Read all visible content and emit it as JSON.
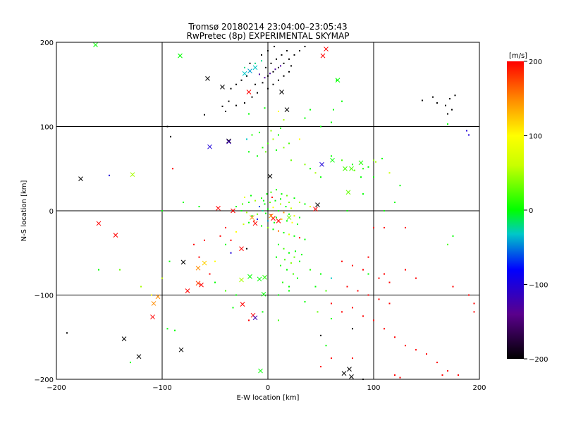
{
  "chart_data": {
    "type": "scatter",
    "title": "Tromsø 20180214 23:04:00–23:05:43",
    "subtitle": "RwPretec (8p) EXPERIMENTAL SKYMAP",
    "xlabel": "E-W location [km]",
    "ylabel": "N-S location [km]",
    "xlim": [
      -200,
      200
    ],
    "ylim": [
      -200,
      200
    ],
    "x_ticks": [
      -200,
      -100,
      0,
      100,
      200
    ],
    "y_ticks": [
      -200,
      -100,
      0,
      100,
      200
    ],
    "grid": true,
    "colorbar": {
      "label": "[m/s]",
      "min": -200,
      "max": 200,
      "ticks": [
        200,
        100,
        0,
        -100,
        -200
      ]
    },
    "cross_points": [
      [
        -163,
        197,
        0
      ],
      [
        -83,
        184,
        0
      ],
      [
        -57,
        157,
        -200
      ],
      [
        -43,
        147,
        -200
      ],
      [
        -18,
        141,
        200
      ],
      [
        13,
        141,
        -200
      ],
      [
        18,
        120,
        -200
      ],
      [
        52,
        184,
        200
      ],
      [
        55,
        192,
        200
      ],
      [
        66,
        155,
        0
      ],
      [
        -22,
        163,
        -30
      ],
      [
        -17,
        166,
        -40
      ],
      [
        -12,
        170,
        -30
      ],
      [
        -55,
        76,
        -100
      ],
      [
        -37,
        83,
        -200
      ],
      [
        -37,
        82,
        -120
      ],
      [
        -177,
        38,
        -200
      ],
      [
        -128,
        43,
        50
      ],
      [
        2,
        41,
        -200
      ],
      [
        -47,
        3,
        200
      ],
      [
        -33,
        0,
        200
      ],
      [
        -160,
        -15,
        200
      ],
      [
        -144,
        -29,
        200
      ],
      [
        -80,
        -61,
        -200
      ],
      [
        -60,
        -62,
        120
      ],
      [
        -66,
        -68,
        150
      ],
      [
        -66,
        -86,
        180
      ],
      [
        -63,
        -88,
        200
      ],
      [
        -76,
        -95,
        200
      ],
      [
        -25,
        -82,
        50
      ],
      [
        -17,
        -78,
        0
      ],
      [
        -8,
        -81,
        0
      ],
      [
        -3,
        -79,
        10
      ],
      [
        -24,
        -111,
        200
      ],
      [
        -14,
        -124,
        200
      ],
      [
        -12,
        -127,
        -120
      ],
      [
        -104,
        -102,
        150
      ],
      [
        -108,
        -110,
        150
      ],
      [
        -109,
        -126,
        200
      ],
      [
        -136,
        -152,
        -200
      ],
      [
        -122,
        -173,
        -200
      ],
      [
        -82,
        -165,
        -200
      ],
      [
        -7,
        -190,
        0
      ],
      [
        72,
        -193,
        -200
      ],
      [
        77,
        -188,
        -200
      ],
      [
        79,
        -197,
        -200
      ],
      [
        47,
        7,
        -200
      ],
      [
        45,
        2,
        200
      ],
      [
        51,
        55,
        -100
      ],
      [
        61,
        60,
        0
      ],
      [
        73,
        50,
        20
      ],
      [
        79,
        50,
        20
      ],
      [
        88,
        57,
        10
      ],
      [
        -4,
        -99,
        0
      ],
      [
        -25,
        -45,
        200
      ],
      [
        5,
        -9,
        200
      ],
      [
        10,
        -12,
        200
      ],
      [
        3,
        -6,
        150
      ],
      [
        -12,
        -15,
        200
      ],
      [
        20,
        -8,
        30
      ],
      [
        -15,
        -8,
        150
      ],
      [
        76,
        22,
        30
      ]
    ],
    "dot_points": [
      [
        -43,
        124,
        -200
      ],
      [
        -37,
        130,
        -200
      ],
      [
        -30,
        125,
        -200
      ],
      [
        -22,
        128,
        -200
      ],
      [
        -15,
        135,
        -200
      ],
      [
        -10,
        140,
        -200
      ],
      [
        -5,
        152,
        -200
      ],
      [
        0,
        160,
        -200
      ],
      [
        5,
        165,
        -200
      ],
      [
        10,
        170,
        -200
      ],
      [
        15,
        175,
        -200
      ],
      [
        20,
        180,
        -200
      ],
      [
        25,
        185,
        -200
      ],
      [
        30,
        190,
        -200
      ],
      [
        35,
        195,
        -200
      ],
      [
        -2,
        170,
        -200
      ],
      [
        3,
        175,
        -200
      ],
      [
        8,
        180,
        -200
      ],
      [
        13,
        185,
        -200
      ],
      [
        18,
        190,
        -200
      ],
      [
        -8,
        162,
        -130
      ],
      [
        -3,
        158,
        -130
      ],
      [
        2,
        163,
        -130
      ],
      [
        7,
        168,
        -130
      ],
      [
        12,
        172,
        -130
      ],
      [
        -20,
        160,
        -200
      ],
      [
        -25,
        155,
        -200
      ],
      [
        -30,
        150,
        -200
      ],
      [
        -35,
        145,
        -200
      ],
      [
        -12,
        150,
        -200
      ],
      [
        0,
        145,
        -200
      ],
      [
        5,
        150,
        -200
      ],
      [
        10,
        155,
        -200
      ],
      [
        15,
        160,
        -200
      ],
      [
        20,
        165,
        -200
      ],
      [
        -6,
        185,
        -200
      ],
      [
        0,
        190,
        -200
      ],
      [
        6,
        195,
        -200
      ],
      [
        -17,
        175,
        -200
      ],
      [
        22,
        172,
        -200
      ],
      [
        -60,
        114,
        -200
      ],
      [
        -92,
        88,
        -200
      ],
      [
        -95,
        100,
        -200
      ],
      [
        -90,
        50,
        200
      ],
      [
        -150,
        42,
        -100
      ],
      [
        146,
        131,
        -200
      ],
      [
        156,
        135,
        -200
      ],
      [
        160,
        128,
        -200
      ],
      [
        168,
        125,
        -200
      ],
      [
        172,
        133,
        -200
      ],
      [
        177,
        137,
        -200
      ],
      [
        170,
        115,
        -200
      ],
      [
        174,
        120,
        -200
      ],
      [
        188,
        95,
        -100
      ],
      [
        190,
        90,
        -100
      ],
      [
        170,
        103,
        0
      ],
      [
        -18,
        115,
        0
      ],
      [
        -22,
        170,
        -20
      ],
      [
        -12,
        175,
        -20
      ],
      [
        -6,
        178,
        -20
      ],
      [
        -40,
        118,
        -200
      ],
      [
        -3,
        122,
        0
      ],
      [
        10,
        118,
        100
      ],
      [
        15,
        108,
        50
      ],
      [
        0,
        80,
        20
      ],
      [
        5,
        85,
        50
      ],
      [
        10,
        90,
        0
      ],
      [
        -5,
        75,
        10
      ],
      [
        -2,
        70,
        30
      ],
      [
        8,
        72,
        0
      ],
      [
        15,
        75,
        40
      ],
      [
        20,
        80,
        20
      ],
      [
        -10,
        65,
        0
      ],
      [
        -18,
        70,
        0
      ],
      [
        30,
        85,
        100
      ],
      [
        22,
        60,
        30
      ],
      [
        35,
        55,
        40
      ],
      [
        40,
        50,
        0
      ],
      [
        45,
        45,
        50
      ],
      [
        50,
        40,
        0
      ],
      [
        -15,
        90,
        10
      ],
      [
        -20,
        85,
        -30
      ],
      [
        -8,
        93,
        0
      ],
      [
        3,
        95,
        40
      ],
      [
        12,
        98,
        0
      ],
      [
        60,
        65,
        0
      ],
      [
        70,
        60,
        20
      ],
      [
        80,
        55,
        0
      ],
      [
        90,
        50,
        10
      ],
      [
        100,
        40,
        0
      ],
      [
        -1,
        20,
        0
      ],
      [
        3,
        22,
        20
      ],
      [
        8,
        25,
        10
      ],
      [
        13,
        20,
        0
      ],
      [
        18,
        18,
        30
      ],
      [
        -6,
        15,
        10
      ],
      [
        -12,
        12,
        50
      ],
      [
        -18,
        10,
        0
      ],
      [
        -24,
        8,
        20
      ],
      [
        -30,
        5,
        0
      ],
      [
        25,
        15,
        0
      ],
      [
        30,
        10,
        50
      ],
      [
        35,
        8,
        0
      ],
      [
        40,
        5,
        80
      ],
      [
        -3,
        8,
        0
      ],
      [
        2,
        10,
        30
      ],
      [
        7,
        12,
        0
      ],
      [
        12,
        8,
        50
      ],
      [
        17,
        5,
        0
      ],
      [
        22,
        3,
        60
      ],
      [
        -5,
        0,
        -20
      ],
      [
        0,
        2,
        0
      ],
      [
        5,
        4,
        100
      ],
      [
        10,
        0,
        0
      ],
      [
        15,
        -2,
        150
      ],
      [
        20,
        -4,
        0
      ],
      [
        25,
        -6,
        80
      ],
      [
        30,
        -8,
        0
      ],
      [
        -10,
        -4,
        30
      ],
      [
        -15,
        -6,
        0
      ],
      [
        -20,
        -2,
        50
      ],
      [
        -25,
        0,
        0
      ],
      [
        -8,
        5,
        -60
      ],
      [
        -2,
        -3,
        0
      ],
      [
        3,
        -5,
        200
      ],
      [
        8,
        -8,
        0
      ],
      [
        13,
        -10,
        120
      ],
      [
        18,
        -12,
        0
      ],
      [
        23,
        -14,
        100
      ],
      [
        28,
        -16,
        0
      ],
      [
        -13,
        -12,
        180
      ],
      [
        -18,
        -14,
        0
      ],
      [
        -23,
        -16,
        60
      ],
      [
        -6,
        -18,
        0
      ],
      [
        0,
        -20,
        40
      ],
      [
        5,
        -22,
        0
      ],
      [
        10,
        -24,
        160
      ],
      [
        15,
        -26,
        0
      ],
      [
        20,
        -28,
        80
      ],
      [
        25,
        -30,
        0
      ],
      [
        30,
        -32,
        200
      ],
      [
        35,
        -34,
        0
      ],
      [
        -10,
        -10,
        -90
      ],
      [
        -4,
        12,
        0
      ],
      [
        4,
        16,
        200
      ],
      [
        12,
        14,
        0
      ],
      [
        20,
        10,
        40
      ],
      [
        -16,
        18,
        0
      ],
      [
        -22,
        16,
        80
      ],
      [
        0,
        -12,
        -40
      ],
      [
        6,
        -14,
        0
      ],
      [
        -30,
        -25,
        100
      ],
      [
        -35,
        -35,
        200
      ],
      [
        -40,
        -40,
        0
      ],
      [
        10,
        -40,
        0
      ],
      [
        15,
        -45,
        20
      ],
      [
        20,
        -50,
        0
      ],
      [
        25,
        -55,
        30
      ],
      [
        30,
        -60,
        0
      ],
      [
        12,
        -65,
        10
      ],
      [
        18,
        -70,
        0
      ],
      [
        24,
        -75,
        20
      ],
      [
        28,
        -80,
        0
      ],
      [
        14,
        -85,
        10
      ],
      [
        20,
        -90,
        0
      ],
      [
        8,
        -55,
        0
      ],
      [
        22,
        -62,
        40
      ],
      [
        26,
        -48,
        0
      ],
      [
        16,
        -58,
        20
      ],
      [
        32,
        -52,
        0
      ],
      [
        40,
        -70,
        10
      ],
      [
        50,
        -75,
        0
      ],
      [
        60,
        -80,
        -30
      ],
      [
        45,
        -90,
        0
      ],
      [
        55,
        -95,
        20
      ],
      [
        60,
        -110,
        200
      ],
      [
        70,
        -120,
        200
      ],
      [
        80,
        -115,
        200
      ],
      [
        90,
        -125,
        200
      ],
      [
        100,
        -130,
        200
      ],
      [
        110,
        -140,
        200
      ],
      [
        120,
        -150,
        200
      ],
      [
        130,
        -160,
        200
      ],
      [
        140,
        -165,
        200
      ],
      [
        150,
        -170,
        200
      ],
      [
        75,
        -90,
        200
      ],
      [
        85,
        -95,
        200
      ],
      [
        95,
        -100,
        200
      ],
      [
        105,
        -105,
        200
      ],
      [
        115,
        -110,
        200
      ],
      [
        70,
        -60,
        200
      ],
      [
        80,
        -65,
        200
      ],
      [
        90,
        -70,
        200
      ],
      [
        105,
        -80,
        200
      ],
      [
        115,
        -85,
        200
      ],
      [
        130,
        -70,
        200
      ],
      [
        140,
        -80,
        200
      ],
      [
        110,
        -75,
        200
      ],
      [
        95,
        -55,
        200
      ],
      [
        100,
        -20,
        200
      ],
      [
        175,
        -90,
        200
      ],
      [
        190,
        -100,
        200
      ],
      [
        195,
        -110,
        200
      ],
      [
        195,
        -120,
        200
      ],
      [
        160,
        -180,
        200
      ],
      [
        170,
        -190,
        200
      ],
      [
        165,
        -195,
        200
      ],
      [
        180,
        -195,
        200
      ],
      [
        120,
        -195,
        200
      ],
      [
        125,
        -198,
        200
      ],
      [
        60,
        -175,
        200
      ],
      [
        50,
        -185,
        200
      ],
      [
        80,
        -175,
        200
      ],
      [
        90,
        -200,
        -200
      ],
      [
        50,
        -148,
        -200
      ],
      [
        -190,
        -145,
        -200
      ],
      [
        -160,
        -70,
        0
      ],
      [
        -140,
        -70,
        30
      ],
      [
        -120,
        -90,
        50
      ],
      [
        -110,
        -100,
        100
      ],
      [
        -95,
        -140,
        0
      ],
      [
        -88,
        -142,
        0
      ],
      [
        -93,
        -60,
        0
      ],
      [
        -100,
        -80,
        60
      ],
      [
        -65,
        -55,
        200
      ],
      [
        -55,
        -75,
        200
      ],
      [
        -50,
        -85,
        0
      ],
      [
        -40,
        -95,
        20
      ],
      [
        -30,
        -100,
        0
      ],
      [
        -130,
        -180,
        0
      ],
      [
        -45,
        -30,
        200
      ],
      [
        -20,
        -45,
        -200
      ],
      [
        -35,
        -50,
        -100
      ],
      [
        -60,
        -35,
        200
      ],
      [
        -40,
        -20,
        200
      ],
      [
        -70,
        -40,
        200
      ],
      [
        -50,
        -60,
        100
      ],
      [
        170,
        -40,
        20
      ],
      [
        175,
        -30,
        0
      ],
      [
        130,
        -20,
        200
      ],
      [
        110,
        -20,
        200
      ],
      [
        95,
        -75,
        0
      ],
      [
        20,
        -95,
        0
      ],
      [
        10,
        -100,
        0
      ],
      [
        35,
        -108,
        0
      ],
      [
        47,
        -120,
        30
      ],
      [
        60,
        -128,
        0
      ],
      [
        80,
        -140,
        -200
      ],
      [
        55,
        -160,
        0
      ],
      [
        10,
        -130,
        20
      ],
      [
        -5,
        -120,
        0
      ],
      [
        -18,
        -130,
        200
      ],
      [
        -33,
        -115,
        0
      ],
      [
        65,
        155,
        0
      ],
      [
        70,
        130,
        0
      ],
      [
        62,
        120,
        0
      ],
      [
        60,
        105,
        0
      ],
      [
        50,
        100,
        0
      ],
      [
        35,
        110,
        0
      ],
      [
        40,
        120,
        0
      ],
      [
        -100,
        0,
        0
      ],
      [
        -80,
        10,
        0
      ],
      [
        -65,
        5,
        0
      ],
      [
        90,
        20,
        0
      ],
      [
        110,
        0,
        0
      ],
      [
        120,
        10,
        0
      ],
      [
        100,
        60,
        40
      ],
      [
        115,
        45,
        60
      ],
      [
        125,
        30,
        0
      ],
      [
        82,
        48,
        30
      ],
      [
        88,
        40,
        0
      ],
      [
        95,
        52,
        0
      ],
      [
        102,
        58,
        50
      ],
      [
        108,
        62,
        0
      ],
      [
        75,
        0,
        0
      ]
    ]
  }
}
